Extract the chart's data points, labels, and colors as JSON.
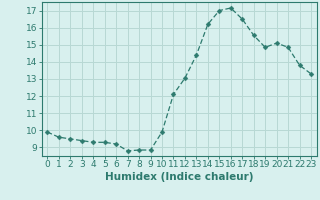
{
  "x": [
    0,
    1,
    2,
    3,
    4,
    5,
    6,
    7,
    8,
    9,
    10,
    11,
    12,
    13,
    14,
    15,
    16,
    17,
    18,
    19,
    20,
    21,
    22,
    23
  ],
  "y": [
    9.9,
    9.6,
    9.5,
    9.4,
    9.3,
    9.3,
    9.2,
    8.8,
    8.85,
    8.85,
    9.9,
    12.1,
    13.05,
    14.4,
    16.2,
    17.0,
    17.15,
    16.5,
    15.55,
    14.85,
    15.1,
    14.85,
    13.8,
    13.3
  ],
  "line_color": "#2d7a6e",
  "marker": "D",
  "marker_size": 2.5,
  "bg_color": "#d8f0ee",
  "grid_color": "#b8d8d4",
  "xlabel": "Humidex (Indice chaleur)",
  "xlim": [
    -0.5,
    23.5
  ],
  "ylim": [
    8.5,
    17.5
  ],
  "xticks": [
    0,
    1,
    2,
    3,
    4,
    5,
    6,
    7,
    8,
    9,
    10,
    11,
    12,
    13,
    14,
    15,
    16,
    17,
    18,
    19,
    20,
    21,
    22,
    23
  ],
  "yticks": [
    9,
    10,
    11,
    12,
    13,
    14,
    15,
    16,
    17
  ],
  "tick_color": "#2d7a6e",
  "axis_color": "#2d7a6e",
  "xlabel_fontsize": 7.5,
  "tick_fontsize": 6.5
}
